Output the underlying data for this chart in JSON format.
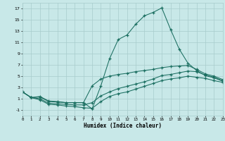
{
  "xlabel": "Humidex (Indice chaleur)",
  "bg_color": "#c8e8e8",
  "grid_color": "#a8cccc",
  "line_color": "#1a6e60",
  "xlim": [
    0,
    23
  ],
  "ylim": [
    -2,
    18
  ],
  "yticks": [
    -1,
    1,
    3,
    5,
    7,
    9,
    11,
    13,
    15,
    17
  ],
  "xticks": [
    0,
    1,
    2,
    3,
    4,
    5,
    6,
    7,
    8,
    9,
    10,
    11,
    12,
    13,
    14,
    15,
    16,
    17,
    18,
    19,
    20,
    21,
    22,
    23
  ],
  "line1_x": [
    0,
    1,
    2,
    3,
    4,
    5,
    6,
    7,
    8,
    9,
    10,
    11,
    12,
    13,
    14,
    15,
    16,
    17,
    18,
    19,
    20,
    21,
    22,
    23
  ],
  "line1_y": [
    2.2,
    1.2,
    1.3,
    0.5,
    0.4,
    0.3,
    0.3,
    0.3,
    -0.8,
    3.3,
    8.1,
    11.5,
    12.3,
    14.2,
    15.7,
    16.3,
    17.1,
    13.3,
    9.8,
    7.3,
    6.0,
    5.1,
    4.7,
    4.1
  ],
  "line2_x": [
    0,
    1,
    2,
    3,
    4,
    5,
    6,
    7,
    8,
    9,
    10,
    11,
    12,
    13,
    14,
    15,
    16,
    17,
    18,
    19,
    20,
    21,
    22,
    23
  ],
  "line2_y": [
    2.2,
    1.2,
    1.4,
    0.6,
    0.5,
    0.3,
    0.3,
    0.3,
    3.3,
    4.5,
    5.0,
    5.3,
    5.5,
    5.8,
    6.0,
    6.2,
    6.5,
    6.7,
    6.8,
    6.9,
    6.2,
    5.4,
    5.0,
    4.4
  ],
  "line3_x": [
    0,
    1,
    2,
    3,
    4,
    5,
    6,
    7,
    8,
    9,
    10,
    11,
    12,
    13,
    14,
    15,
    16,
    17,
    18,
    19,
    20,
    21,
    22,
    23
  ],
  "line3_y": [
    2.2,
    1.2,
    1.0,
    0.2,
    0.1,
    0.0,
    -0.1,
    -0.1,
    0.3,
    1.5,
    2.2,
    2.8,
    3.2,
    3.6,
    4.0,
    4.5,
    5.1,
    5.3,
    5.6,
    5.9,
    5.8,
    5.2,
    4.8,
    4.2
  ],
  "line4_x": [
    0,
    1,
    2,
    3,
    4,
    5,
    6,
    7,
    8,
    9,
    10,
    11,
    12,
    13,
    14,
    15,
    16,
    17,
    18,
    19,
    20,
    21,
    22,
    23
  ],
  "line4_y": [
    2.2,
    1.2,
    0.8,
    0.0,
    -0.1,
    -0.3,
    -0.4,
    -0.6,
    -0.7,
    0.5,
    1.4,
    1.9,
    2.2,
    2.7,
    3.2,
    3.7,
    4.2,
    4.5,
    4.7,
    5.0,
    4.8,
    4.6,
    4.2,
    3.9
  ]
}
